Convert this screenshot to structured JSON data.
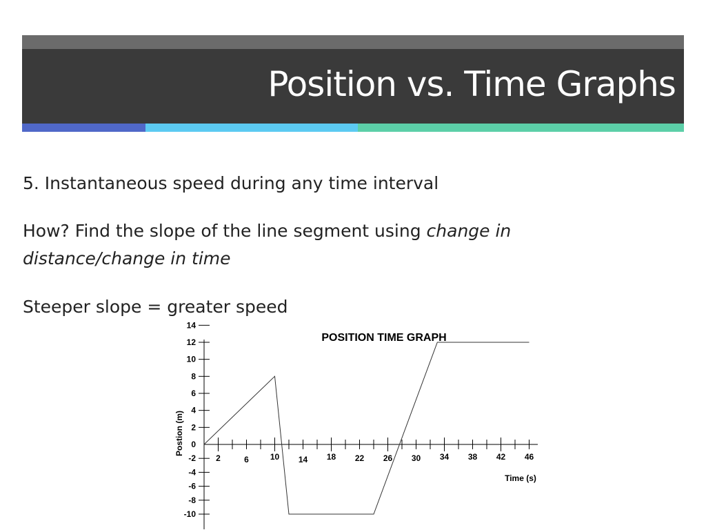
{
  "slide": {
    "title": "Position vs. Time Graphs",
    "point": "5.  Instantaneous speed during any time interval",
    "how_prefix": "How?  Find the slope of the line segment using ",
    "how_italic": "change in distance/change in time",
    "rule": "Steeper slope = greater speed"
  },
  "colors": {
    "title_bar": "#3a3a3a",
    "top_strip": "#6b6b6b",
    "accent_blue": "#5068c8",
    "accent_light_blue": "#5ccaf2",
    "accent_green": "#5ccfa8"
  },
  "chart_data": {
    "type": "line",
    "title": "POSITION TIME GRAPH",
    "xlabel": "Time (s)",
    "ylabel": "Postion  (m)",
    "x_tick_labels": [
      "2",
      "6",
      "10",
      "14",
      "18",
      "22",
      "26",
      "30",
      "34",
      "38",
      "42",
      "46"
    ],
    "y_tick_labels": [
      "14",
      "12",
      "10",
      "8",
      "6",
      "4",
      "2",
      "0",
      "-2",
      "-4",
      "-6",
      "-8",
      "-10"
    ],
    "series": [
      {
        "x": [
          0,
          10,
          12,
          24,
          33,
          46
        ],
        "y": [
          0,
          8,
          -10,
          -10,
          12,
          12
        ]
      }
    ],
    "grid": false
  }
}
